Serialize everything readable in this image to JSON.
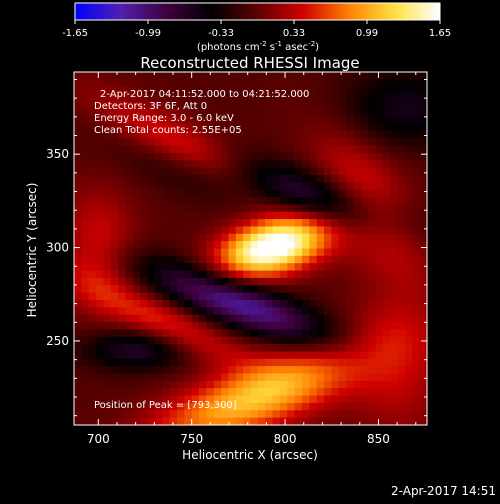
{
  "chart_data": {
    "type": "heatmap",
    "title": "Reconstructed RHESSI Image",
    "xlabel": "Heliocentric X (arcsec)",
    "ylabel": "Heliocentric Y (arcsec)",
    "xlim": [
      687,
      876
    ],
    "ylim": [
      205,
      394
    ],
    "x_ticks": [
      700,
      750,
      800,
      850
    ],
    "y_ticks": [
      250,
      300,
      350
    ],
    "colorbar": {
      "min": -1.65,
      "max": 1.65,
      "tick_labels": [
        "-1.65",
        "-0.99",
        "-0.33",
        "0.33",
        "0.99",
        "1.65"
      ],
      "label_prefix": "(photons cm",
      "label_sup1": "-2",
      "label_mid": " s",
      "label_sup2": "-1",
      "label_mid2": " asec",
      "label_sup3": "-2",
      "label_suffix": ")",
      "colors": [
        "#0000ff",
        "#5020b0",
        "#400040",
        "#000000",
        "#600000",
        "#d00000",
        "#ff8000",
        "#ffe040",
        "#ffffff"
      ]
    },
    "info_lines": [
      "2-Apr-2017 04:11:52.000 to 04:21:52.000",
      "Detectors: 3F 6F, Att 0",
      "Energy Range: 3.0 - 6.0 keV",
      "Clean     Total counts: 2.55E+05"
    ],
    "peak_text": "Position of Peak = [793,300]",
    "peak": {
      "x": 793,
      "y": 300,
      "value": 1.65
    },
    "blobs": [
      {
        "x": 793,
        "y": 300,
        "sx": 20,
        "sy": 10,
        "angle": 15,
        "amp": 1.9
      },
      {
        "x": 785,
        "y": 220,
        "sx": 40,
        "sy": 12,
        "angle": 20,
        "amp": 1.2
      },
      {
        "x": 760,
        "y": 345,
        "sx": 45,
        "sy": 9,
        "angle": -30,
        "amp": 0.7
      },
      {
        "x": 845,
        "y": 325,
        "sx": 30,
        "sy": 14,
        "angle": -55,
        "amp": 0.6
      },
      {
        "x": 700,
        "y": 300,
        "sx": 14,
        "sy": 22,
        "angle": 0,
        "amp": 0.5
      },
      {
        "x": 735,
        "y": 260,
        "sx": 35,
        "sy": 8,
        "angle": -25,
        "amp": 0.6
      },
      {
        "x": 860,
        "y": 240,
        "sx": 18,
        "sy": 28,
        "angle": 0,
        "amp": 0.45
      },
      {
        "x": 775,
        "y": 270,
        "sx": 38,
        "sy": 9,
        "angle": -20,
        "amp": -1.1
      },
      {
        "x": 800,
        "y": 330,
        "sx": 45,
        "sy": 10,
        "angle": -15,
        "amp": -0.9
      },
      {
        "x": 720,
        "y": 245,
        "sx": 20,
        "sy": 8,
        "angle": 0,
        "amp": -0.6
      },
      {
        "x": 865,
        "y": 375,
        "sx": 25,
        "sy": 15,
        "angle": 0,
        "amp": -0.5
      }
    ]
  },
  "footer": {
    "timestamp": "2-Apr-2017 14:51"
  }
}
